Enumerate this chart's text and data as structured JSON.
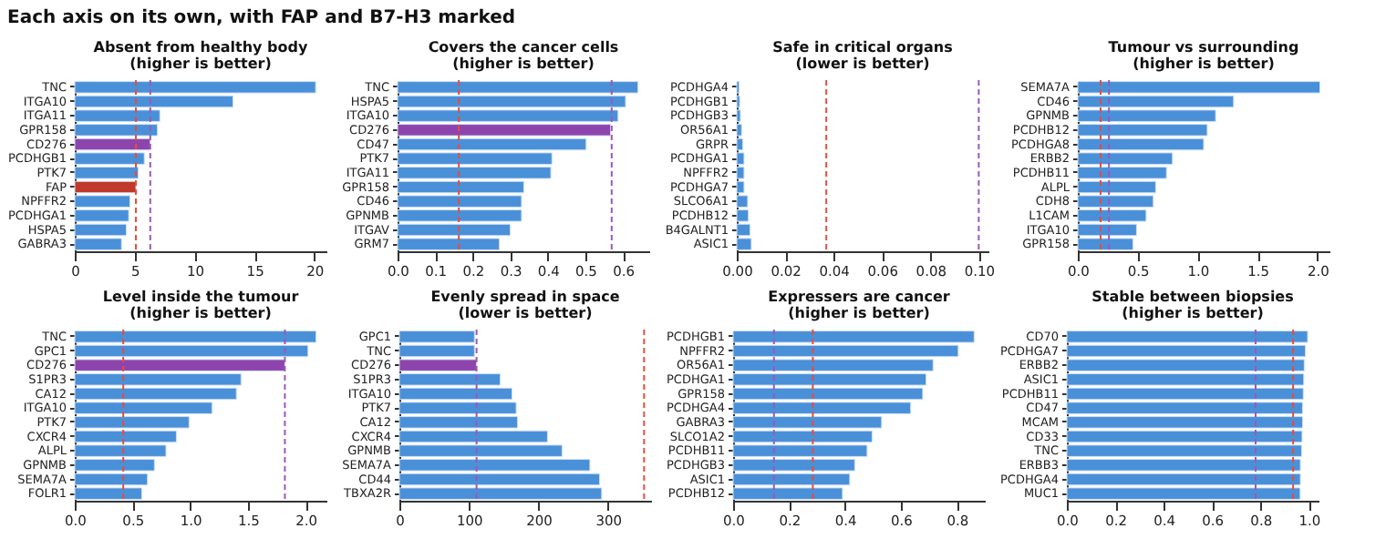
{
  "chart_data": [
    {
      "type": "other",
      "title": "Each axis on its own, with FAP and B7-H3 marked"
    },
    {
      "type": "bar",
      "orientation": "horizontal",
      "title": "Absent from healthy body",
      "subtitle": "(higher is better)",
      "categories": [
        "TNC",
        "ITGA10",
        "ITGA11",
        "GPR158",
        "CD276",
        "PCDHGB1",
        "PTK7",
        "FAP",
        "NPFFR2",
        "PCDHGA1",
        "HSPA5",
        "GABRA3"
      ],
      "values": [
        20.1,
        13.2,
        7.1,
        6.9,
        6.3,
        5.8,
        5.3,
        5.1,
        4.6,
        4.5,
        4.3,
        3.9
      ],
      "colors": [
        "#4a90d9",
        "#4a90d9",
        "#4a90d9",
        "#4a90d9",
        "#8e44ad",
        "#4a90d9",
        "#4a90d9",
        "#c0392b",
        "#4a90d9",
        "#4a90d9",
        "#4a90d9",
        "#4a90d9"
      ],
      "xlim": [
        0,
        21
      ],
      "xticks": [
        0,
        5,
        10,
        15,
        20
      ],
      "ref_lines": [
        {
          "axis": "x",
          "value": 5.1,
          "color": "#e74c3c",
          "line_style": "dashed"
        },
        {
          "axis": "x",
          "value": 6.3,
          "color": "#9b59b6",
          "line_style": "dashed"
        }
      ]
    },
    {
      "type": "bar",
      "orientation": "horizontal",
      "title": "Covers the cancer cells",
      "subtitle": "(higher is better)",
      "categories": [
        "TNC",
        "HSPA5",
        "ITGA10",
        "CD276",
        "CD47",
        "PTK7",
        "ITGA11",
        "GPR158",
        "CD46",
        "GPNMB",
        "ITGAV",
        "GRM7"
      ],
      "values": [
        0.64,
        0.607,
        0.587,
        0.567,
        0.502,
        0.411,
        0.408,
        0.336,
        0.33,
        0.33,
        0.3,
        0.271
      ],
      "colors": [
        "#4a90d9",
        "#4a90d9",
        "#4a90d9",
        "#8e44ad",
        "#4a90d9",
        "#4a90d9",
        "#4a90d9",
        "#4a90d9",
        "#4a90d9",
        "#4a90d9",
        "#4a90d9",
        "#4a90d9"
      ],
      "xlim": [
        0,
        0.67
      ],
      "xticks": [
        {
          "value": 0,
          "label": "0.0"
        },
        0.1,
        0.2,
        0.3,
        0.4,
        0.5,
        0.6
      ],
      "ref_lines": [
        {
          "axis": "x",
          "value": 0.163,
          "color": "#e74c3c",
          "line_style": "dashed"
        },
        {
          "axis": "x",
          "value": 0.57,
          "color": "#9b59b6",
          "line_style": "dashed"
        }
      ]
    },
    {
      "type": "bar",
      "orientation": "horizontal",
      "title": "Safe in critical organs",
      "subtitle": "(lower is better)",
      "categories": [
        "PCDHGA4",
        "PCDHGB1",
        "PCDHGB3",
        "OR56A1",
        "GRPR",
        "PCDHGA1",
        "NPFFR2",
        "PCDHGA7",
        "SLCO6A1",
        "PCDHB12",
        "B4GALNT1",
        "ASIC1"
      ],
      "values": [
        0.001,
        0.0012,
        0.0015,
        0.002,
        0.0025,
        0.003,
        0.003,
        0.003,
        0.0045,
        0.0048,
        0.0055,
        0.006
      ],
      "colors": [
        "#4a90d9",
        "#4a90d9",
        "#4a90d9",
        "#4a90d9",
        "#4a90d9",
        "#4a90d9",
        "#4a90d9",
        "#4a90d9",
        "#4a90d9",
        "#4a90d9",
        "#4a90d9",
        "#4a90d9"
      ],
      "xlim": [
        0,
        0.104
      ],
      "xticks": [
        {
          "value": 0,
          "label": "0.00"
        },
        {
          "value": 0.02,
          "label": "0.02"
        },
        {
          "value": 0.04,
          "label": "0.04"
        },
        {
          "value": 0.06,
          "label": "0.06"
        },
        {
          "value": 0.08,
          "label": "0.08"
        },
        {
          "value": 0.1,
          "label": "0.10"
        }
      ],
      "ref_lines": [
        {
          "axis": "x",
          "value": 0.037,
          "color": "#e74c3c",
          "line_style": "dashed"
        },
        {
          "axis": "x",
          "value": 0.1,
          "color": "#9b59b6",
          "line_style": "dashed"
        }
      ]
    },
    {
      "type": "bar",
      "orientation": "horizontal",
      "title": "Tumour vs surrounding",
      "subtitle": "(higher is better)",
      "categories": [
        "SEMA7A",
        "CD46",
        "GPNMB",
        "PCDHB12",
        "PCDHGA8",
        "ERBB2",
        "PCDHB11",
        "ALPL",
        "CDH8",
        "L1CAM",
        "ITGA10",
        "GPR158"
      ],
      "values": [
        2.02,
        1.3,
        1.15,
        1.08,
        1.05,
        0.79,
        0.74,
        0.65,
        0.63,
        0.57,
        0.49,
        0.46
      ],
      "colors": [
        "#4a90d9",
        "#4a90d9",
        "#4a90d9",
        "#4a90d9",
        "#4a90d9",
        "#4a90d9",
        "#4a90d9",
        "#4a90d9",
        "#4a90d9",
        "#4a90d9",
        "#4a90d9",
        "#4a90d9"
      ],
      "xlim": [
        0,
        2.1
      ],
      "xticks": [
        {
          "value": 0,
          "label": "0.0"
        },
        0.5,
        {
          "value": 1,
          "label": "1.0"
        },
        1.5,
        {
          "value": 2,
          "label": "2.0"
        }
      ],
      "ref_lines": [
        {
          "axis": "x",
          "value": 0.19,
          "color": "#e74c3c",
          "line_style": "dashed"
        },
        {
          "axis": "x",
          "value": 0.26,
          "color": "#9b59b6",
          "line_style": "dashed"
        }
      ]
    },
    {
      "type": "bar",
      "orientation": "horizontal",
      "title": "Level inside the tumour",
      "subtitle": "(higher is better)",
      "categories": [
        "TNC",
        "GPC1",
        "CD276",
        "S1PR3",
        "CA12",
        "ITGA10",
        "PTK7",
        "CXCR4",
        "ALPL",
        "GPNMB",
        "SEMA7A",
        "FOLR1"
      ],
      "values": [
        2.09,
        2.02,
        1.82,
        1.44,
        1.4,
        1.19,
        0.99,
        0.88,
        0.79,
        0.69,
        0.63,
        0.58
      ],
      "colors": [
        "#4a90d9",
        "#4a90d9",
        "#8e44ad",
        "#4a90d9",
        "#4a90d9",
        "#4a90d9",
        "#4a90d9",
        "#4a90d9",
        "#4a90d9",
        "#4a90d9",
        "#4a90d9",
        "#4a90d9"
      ],
      "xlim": [
        0,
        2.18
      ],
      "xticks": [
        {
          "value": 0,
          "label": "0.0"
        },
        0.5,
        {
          "value": 1,
          "label": "1.0"
        },
        1.5,
        {
          "value": 2,
          "label": "2.0"
        }
      ],
      "ref_lines": [
        {
          "axis": "x",
          "value": 0.42,
          "color": "#e74c3c",
          "line_style": "dashed"
        },
        {
          "axis": "x",
          "value": 1.82,
          "color": "#9b59b6",
          "line_style": "dashed"
        }
      ]
    },
    {
      "type": "bar",
      "orientation": "horizontal",
      "title": "Evenly spread in space",
      "subtitle": "(lower is better)",
      "categories": [
        "GPC1",
        "TNC",
        "CD276",
        "S1PR3",
        "ITGA10",
        "PTK7",
        "CA12",
        "CXCR4",
        "GPNMB",
        "SEMA7A",
        "CD44",
        "TBXA2R"
      ],
      "values": [
        108,
        108,
        111,
        145,
        162,
        168,
        170,
        213,
        234,
        274,
        288,
        291
      ],
      "colors": [
        "#4a90d9",
        "#4a90d9",
        "#8e44ad",
        "#4a90d9",
        "#4a90d9",
        "#4a90d9",
        "#4a90d9",
        "#4a90d9",
        "#4a90d9",
        "#4a90d9",
        "#4a90d9",
        "#4a90d9"
      ],
      "xlim": [
        0,
        362
      ],
      "xticks": [
        0,
        100,
        200,
        300
      ],
      "ref_lines": [
        {
          "axis": "x",
          "value": 352,
          "color": "#e74c3c",
          "line_style": "dashed"
        },
        {
          "axis": "x",
          "value": 111,
          "color": "#9b59b6",
          "line_style": "dashed"
        }
      ]
    },
    {
      "type": "bar",
      "orientation": "horizontal",
      "title": "Expressers are cancer",
      "subtitle": "(higher is better)",
      "categories": [
        "PCDHGB1",
        "NPFFR2",
        "OR56A1",
        "PCDHGA1",
        "GPR158",
        "PCDHGA4",
        "GABRA3",
        "SLCO1A2",
        "PCDHB11",
        "PCDHGB3",
        "ASIC1",
        "PCDHB12"
      ],
      "values": [
        0.862,
        0.805,
        0.715,
        0.69,
        0.678,
        0.635,
        0.531,
        0.497,
        0.479,
        0.435,
        0.417,
        0.391
      ],
      "colors": [
        "#4a90d9",
        "#4a90d9",
        "#4a90d9",
        "#4a90d9",
        "#4a90d9",
        "#4a90d9",
        "#4a90d9",
        "#4a90d9",
        "#4a90d9",
        "#4a90d9",
        "#4a90d9",
        "#4a90d9"
      ],
      "xlim": [
        0,
        0.9
      ],
      "xticks": [
        {
          "value": 0,
          "label": "0.0"
        },
        0.2,
        0.4,
        0.6,
        0.8
      ],
      "ref_lines": [
        {
          "axis": "x",
          "value": 0.285,
          "color": "#e74c3c",
          "line_style": "dashed"
        },
        {
          "axis": "x",
          "value": 0.146,
          "color": "#9b59b6",
          "line_style": "dashed"
        }
      ]
    },
    {
      "type": "bar",
      "orientation": "horizontal",
      "title": "Stable between biopsies",
      "subtitle": "(higher is better)",
      "categories": [
        "CD70",
        "PCDHGA7",
        "ERBB2",
        "ASIC1",
        "PCDHB11",
        "CD47",
        "MCAM",
        "CD33",
        "TNC",
        "ERBB3",
        "PCDHGA4",
        "MUC1"
      ],
      "values": [
        0.995,
        0.986,
        0.981,
        0.979,
        0.977,
        0.974,
        0.974,
        0.972,
        0.97,
        0.965,
        0.965,
        0.964
      ],
      "colors": [
        "#4a90d9",
        "#4a90d9",
        "#4a90d9",
        "#4a90d9",
        "#4a90d9",
        "#4a90d9",
        "#4a90d9",
        "#4a90d9",
        "#4a90d9",
        "#4a90d9",
        "#4a90d9",
        "#4a90d9"
      ],
      "xlim": [
        0,
        1.04
      ],
      "xticks": [
        {
          "value": 0,
          "label": "0.0"
        },
        0.2,
        0.4,
        0.6,
        0.8,
        {
          "value": 1,
          "label": "1.0"
        }
      ],
      "ref_lines": [
        {
          "axis": "x",
          "value": 0.935,
          "color": "#e74c3c",
          "line_style": "dashed"
        },
        {
          "axis": "x",
          "value": 0.78,
          "color": "#9b59b6",
          "line_style": "dashed"
        }
      ]
    }
  ]
}
